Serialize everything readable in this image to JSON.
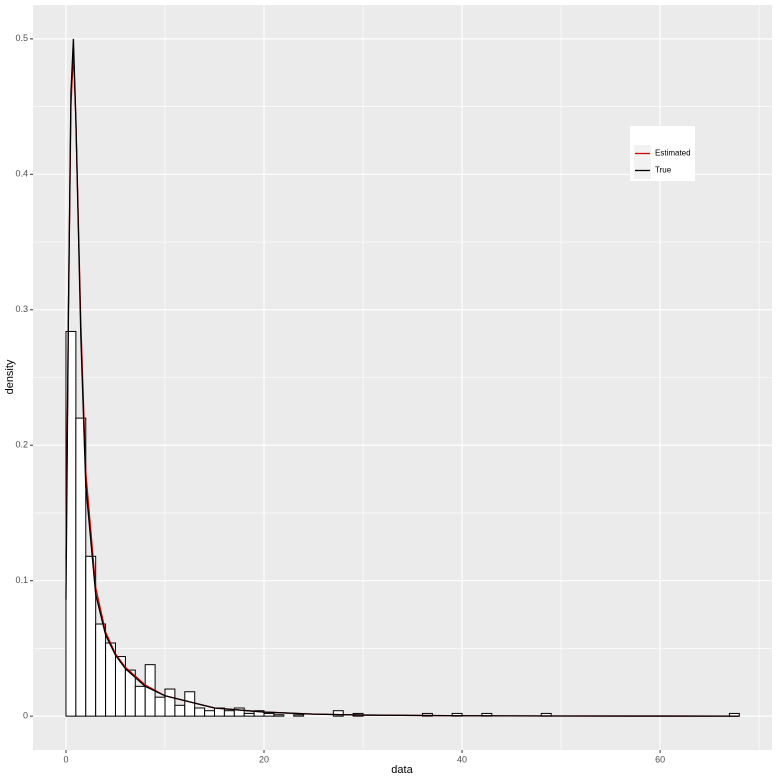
{
  "chart_data": {
    "type": "histogram",
    "x_label": "data",
    "y_label": "density",
    "bins": [
      0,
      1,
      2,
      3,
      4,
      5,
      6,
      7,
      8,
      9,
      10,
      11,
      12,
      13,
      14,
      15,
      16,
      17,
      18,
      19,
      20,
      21,
      22,
      23,
      24,
      25,
      26,
      27,
      28,
      29,
      30,
      31,
      32,
      33,
      34,
      35,
      36,
      37,
      38,
      39,
      40,
      41,
      42,
      43,
      44,
      45,
      46,
      47,
      48,
      49,
      50,
      51,
      52,
      53,
      54,
      55,
      56,
      57,
      58,
      59,
      60,
      61,
      62,
      63,
      64,
      65,
      66,
      67,
      68
    ],
    "values": [
      0.284,
      0.22,
      0.118,
      0.068,
      0.054,
      0.044,
      0.034,
      0.022,
      0.038,
      0.014,
      0.02,
      0.008,
      0.018,
      0.006,
      0.004,
      0.006,
      0.004,
      0.006,
      0.002,
      0.004,
      0.002,
      0.001,
      0,
      0.001,
      0,
      0,
      0,
      0.004,
      0,
      0.002,
      0,
      0,
      0,
      0,
      0,
      0,
      0.002,
      0,
      0,
      0.002,
      0,
      0,
      0.002,
      0,
      0,
      0,
      0,
      0,
      0.002,
      0,
      0,
      0,
      0,
      0,
      0,
      0,
      0,
      0,
      0,
      0,
      0,
      0,
      0,
      0,
      0,
      0,
      0,
      0.002
    ],
    "color": "#000000",
    "fill": "#ffffff",
    "lines": {
      "x": [
        0,
        0.25,
        0.5,
        0.75,
        1,
        1.5,
        2,
        3,
        4,
        5,
        6,
        8,
        10,
        15,
        20,
        25,
        30,
        40,
        50,
        60,
        68
      ],
      "series": [
        {
          "name": "Estimated",
          "color": "#cc0000",
          "values": [
            0.116,
            0.3,
            0.45,
            0.49,
            0.44,
            0.29,
            0.18,
            0.095,
            0.062,
            0.046,
            0.036,
            0.023,
            0.015,
            0.006,
            0.003,
            0.0015,
            0.0008,
            0.0003,
            0.0001,
            5e-05,
            3e-05
          ]
        },
        {
          "name": "True",
          "color": "#000000",
          "values": [
            0.086,
            0.3,
            0.46,
            0.5,
            0.44,
            0.28,
            0.17,
            0.09,
            0.06,
            0.045,
            0.035,
            0.022,
            0.015,
            0.006,
            0.003,
            0.0015,
            0.0008,
            0.0003,
            0.0001,
            5e-05,
            3e-05
          ]
        }
      ]
    },
    "xlim": [
      -3.33,
      71.3
    ],
    "ylim": [
      -0.025,
      0.525
    ],
    "xticks": [
      0,
      20,
      40,
      60
    ],
    "yticks": [
      0.0,
      0.1,
      0.2,
      0.3,
      0.4,
      0.5
    ],
    "x_minor_ticks": [
      10,
      30,
      50,
      70
    ],
    "y_minor_ticks": [
      0.05,
      0.15,
      0.25,
      0.35,
      0.45
    ],
    "grid": true,
    "legend": "top-right"
  }
}
